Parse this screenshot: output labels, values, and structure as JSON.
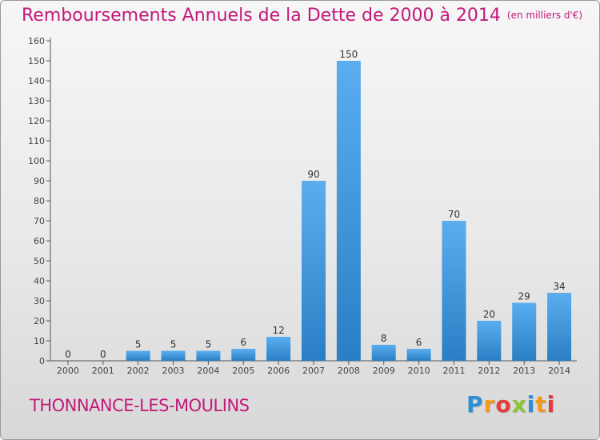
{
  "header": {
    "title": "Remboursements Annuels de la Dette de 2000 à 2014",
    "subtitle": "(en milliers d'€)"
  },
  "footer": {
    "commune": "THONNANCE-LES-MOULINS",
    "logo_text": "Proxiti"
  },
  "colors": {
    "title": "#c2197a",
    "bar_top": "#5aaef0",
    "bar_bottom": "#2a7fc4"
  },
  "chart_data": {
    "type": "bar",
    "title": "Remboursements Annuels de la Dette de 2000 à 2014",
    "subtitle": "(en milliers d'€)",
    "categories": [
      "2000",
      "2001",
      "2002",
      "2003",
      "2004",
      "2005",
      "2006",
      "2007",
      "2008",
      "2009",
      "2010",
      "2011",
      "2012",
      "2013",
      "2014"
    ],
    "values": [
      0,
      0,
      5,
      5,
      5,
      6,
      12,
      90,
      150,
      8,
      6,
      70,
      20,
      29,
      34
    ],
    "xlabel": "",
    "ylabel": "",
    "ylim": [
      0,
      160
    ],
    "yticks": [
      0,
      10,
      20,
      30,
      40,
      50,
      60,
      70,
      80,
      90,
      100,
      110,
      120,
      130,
      140,
      150,
      160
    ],
    "grid": false,
    "legend": "none",
    "data_labels": true
  }
}
